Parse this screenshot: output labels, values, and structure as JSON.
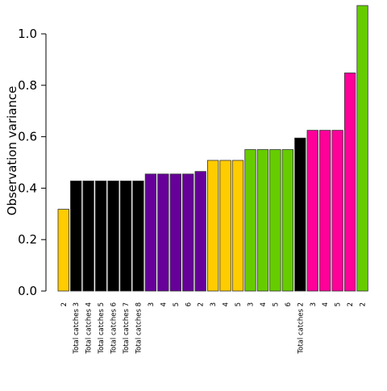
{
  "chart_data": {
    "type": "bar",
    "title": "",
    "xlabel": "",
    "ylabel": "Observation variance",
    "ylim": [
      0,
      1.1
    ],
    "yticks": [
      "0.0",
      "0.2",
      "0.4",
      "0.6",
      "0.8",
      "1.0"
    ],
    "grid": false,
    "categories": [
      "2",
      "Total catches 3",
      "Total catches 4",
      "Total catches 5",
      "Total catches 6",
      "Total catches 7",
      "Total catches 8",
      "3",
      "4",
      "5",
      "6",
      "2",
      "3",
      "4",
      "5",
      "3",
      "4",
      "5",
      "6",
      "Total catches 2",
      "3",
      "4",
      "5",
      "2",
      "2"
    ],
    "values": [
      0.318,
      0.428,
      0.428,
      0.428,
      0.428,
      0.428,
      0.428,
      0.455,
      0.455,
      0.455,
      0.455,
      0.465,
      0.508,
      0.508,
      0.508,
      0.55,
      0.55,
      0.55,
      0.55,
      0.595,
      0.625,
      0.625,
      0.625,
      0.848,
      1.11
    ],
    "bar_colors": [
      "#FFCC00",
      "#000000",
      "#000000",
      "#000000",
      "#000000",
      "#000000",
      "#000000",
      "#660099",
      "#660099",
      "#660099",
      "#660099",
      "#660099",
      "#FFCC00",
      "#FFCC00",
      "#FFCC00",
      "#66CC00",
      "#66CC00",
      "#66CC00",
      "#66CC00",
      "#000000",
      "#FF0099",
      "#FF0099",
      "#FF0099",
      "#FF0099",
      "#66CC00"
    ]
  }
}
